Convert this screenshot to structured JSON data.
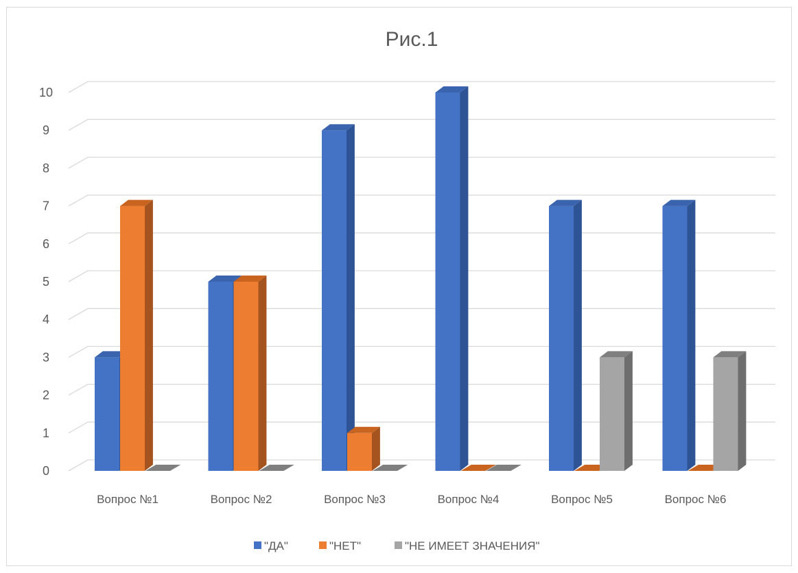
{
  "chart_data": {
    "type": "bar",
    "title": "Рис.1",
    "categories": [
      "Вопрос №1",
      "Вопрос №2",
      "Вопрос №3",
      "Вопрос №4",
      "Вопрос №5",
      "Вопрос №6"
    ],
    "series": [
      {
        "name": "\"ДА\"",
        "values": [
          3,
          5,
          9,
          10,
          7,
          7
        ],
        "color": "#4472C4",
        "side_color": "#2F5496",
        "top_color": "#3A64AE"
      },
      {
        "name": "\"НЕТ\"",
        "values": [
          7,
          5,
          1,
          0,
          0,
          0
        ],
        "color": "#ED7D31",
        "side_color": "#A5541F",
        "top_color": "#C8641F"
      },
      {
        "name": "\"НЕ ИМЕЕТ ЗНАЧЕНИЯ\"",
        "values": [
          0,
          0,
          0,
          0,
          3,
          3
        ],
        "color": "#A5A5A5",
        "side_color": "#6E6E6E",
        "top_color": "#7F7F7F"
      }
    ],
    "ylim": [
      0,
      10
    ],
    "yticks": [
      "0",
      "1",
      "2",
      "3",
      "4",
      "5",
      "6",
      "7",
      "8",
      "9",
      "10"
    ],
    "xlabel": "",
    "ylabel": "",
    "grid": true,
    "legend_position": "bottom",
    "style": "3d-clustered-column"
  }
}
